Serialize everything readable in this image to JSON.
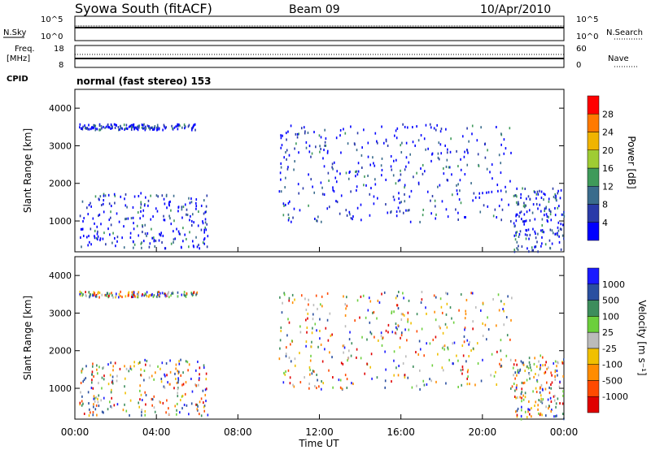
{
  "header": {
    "station": "Syowa South (fitACF)",
    "beam": "Beam 09",
    "date": "10/Apr/2010"
  },
  "strip_top": {
    "left_label": "N.Sky",
    "left_ticks": [
      "10^5",
      "10^0"
    ],
    "right_label": "N.Search",
    "right_ticks": [
      "10^5",
      "10^0"
    ]
  },
  "strip_freq": {
    "left_label_1": "Freq.",
    "left_label_2": "[MHz]",
    "left_ticks": [
      "18",
      "8"
    ],
    "right_label": "Nave",
    "right_ticks": [
      "60",
      "0"
    ]
  },
  "cpid": {
    "label": "CPID",
    "value": "normal (fast stereo) 153"
  },
  "colors": {
    "power_scale": [
      "#0000ff",
      "#2a3aa8",
      "#3a6c8c",
      "#3f9a5a",
      "#9fcc33",
      "#f0b400",
      "#ff7a00",
      "#ff0000"
    ],
    "velocity_scale": [
      "#1a1aff",
      "#2a4fa0",
      "#3d8d5c",
      "#6ccf3c",
      "#bbbbbb",
      "#f0c000",
      "#ff8c00",
      "#ff4a00",
      "#e00000"
    ]
  },
  "chart_data": [
    {
      "type": "heatmap",
      "name": "power",
      "x_axis": {
        "ticks": [
          "00:00",
          "04:00",
          "08:00",
          "12:00",
          "16:00",
          "20:00",
          "00:00"
        ],
        "range_hours": [
          0,
          24
        ],
        "label": "Time UT"
      },
      "y_axis": {
        "label": "Slant Range [km]",
        "ticks": [
          "1000",
          "2000",
          "3000",
          "4000"
        ],
        "range": [
          180,
          4500
        ]
      },
      "colorbar": {
        "label": "Power [dB]",
        "ticks": [
          "28",
          "24",
          "20",
          "16",
          "12",
          "8",
          "4"
        ],
        "range": [
          0,
          32
        ]
      },
      "echo_regions": [
        {
          "t": [
            0.2,
            6.0
          ],
          "r": [
            3450,
            3600
          ]
        },
        {
          "t": [
            0.2,
            6.5
          ],
          "r": [
            300,
            1800
          ]
        },
        {
          "t": [
            10.0,
            21.5
          ],
          "r": [
            1000,
            3600
          ]
        },
        {
          "t": [
            21.5,
            24.0
          ],
          "r": [
            200,
            1900
          ]
        }
      ]
    },
    {
      "type": "heatmap",
      "name": "velocity",
      "x_axis": {
        "ticks": [
          "00:00",
          "04:00",
          "08:00",
          "12:00",
          "16:00",
          "20:00",
          "00:00"
        ],
        "range_hours": [
          0,
          24
        ],
        "label": "Time UT"
      },
      "y_axis": {
        "label": "Slant Range [km]",
        "ticks": [
          "1000",
          "2000",
          "3000",
          "4000"
        ],
        "range": [
          180,
          4500
        ]
      },
      "colorbar": {
        "label": "Velocity [m s⁻¹]",
        "ticks": [
          "1000",
          "500",
          "100",
          "25",
          "-25",
          "-100",
          "-500",
          "-1000"
        ]
      }
    }
  ]
}
